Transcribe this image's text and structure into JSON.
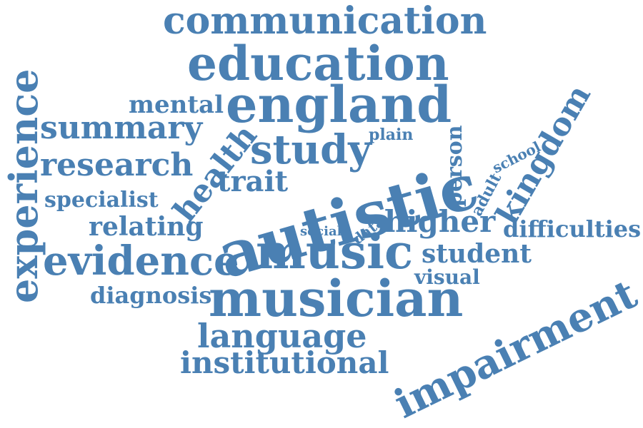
{
  "text_color": "#4a80b3",
  "words": {
    "communication": "communication",
    "education": "education",
    "england": "england",
    "mental": "mental",
    "summary": "summary",
    "experience": "experience",
    "health": "health",
    "study": "study",
    "plain": "plain",
    "person": "person",
    "school": "school",
    "kingdom": "kingdom",
    "research": "research",
    "trait": "trait",
    "autistic": "autistic",
    "adult": "adult",
    "specialist": "specialist",
    "relating": "relating",
    "social": "social",
    "data": "data",
    "higher": "higher",
    "difficulties": "difficulties",
    "evidence": "evidence",
    "music": "music",
    "student": "student",
    "visual": "visual",
    "diagnosis": "diagnosis",
    "musician": "musician",
    "impairment": "impairment",
    "language": "language",
    "institutional": "institutional"
  }
}
